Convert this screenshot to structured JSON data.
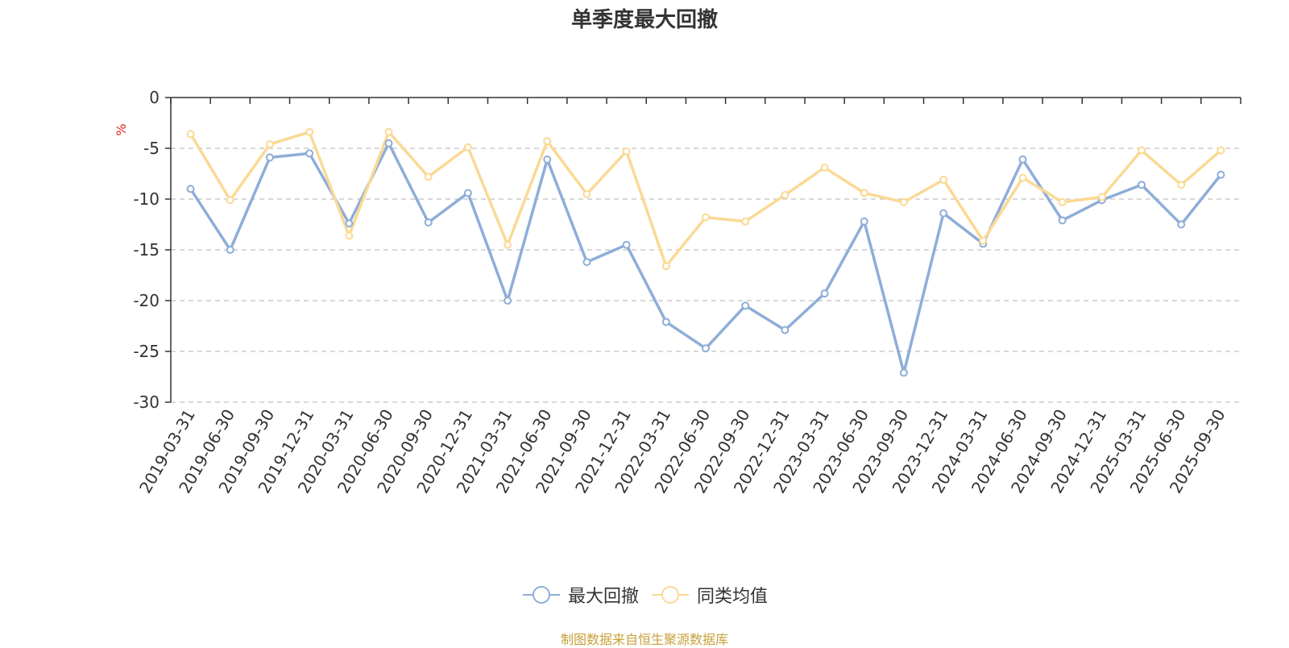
{
  "chart_data": {
    "type": "line",
    "title": "单季度最大回撤",
    "ylabel": "%",
    "xlabel": "",
    "ylim": [
      -30,
      0
    ],
    "yticks": [
      0,
      -5,
      -10,
      -15,
      -20,
      -25,
      -30
    ],
    "grid": true,
    "legend_position": "bottom",
    "categories": [
      "2019-03-31",
      "2019-06-30",
      "2019-09-30",
      "2019-12-31",
      "2020-03-31",
      "2020-06-30",
      "2020-09-30",
      "2020-12-31",
      "2021-03-31",
      "2021-06-30",
      "2021-09-30",
      "2021-12-31",
      "2022-03-31",
      "2022-06-30",
      "2022-09-30",
      "2022-12-31",
      "2023-03-31",
      "2023-06-30",
      "2023-09-30",
      "2023-12-31",
      "2024-03-31",
      "2024-06-30",
      "2024-09-30",
      "2024-12-31",
      "2025-03-31",
      "2025-06-30",
      "2025-09-30"
    ],
    "series": [
      {
        "name": "最大回撤",
        "color": "#8eadd8",
        "values": [
          -9.0,
          -15.0,
          -5.9,
          -5.5,
          -12.4,
          -4.5,
          -12.3,
          -9.4,
          -20.0,
          -6.1,
          -16.2,
          -14.5,
          -22.1,
          -24.7,
          -20.5,
          -22.9,
          -19.3,
          -12.2,
          -27.1,
          -11.4,
          -14.4,
          -6.1,
          -12.1,
          -10.1,
          -8.6,
          -12.5,
          -7.6
        ]
      },
      {
        "name": "同类均值",
        "color": "#fbd994",
        "values": [
          -3.6,
          -10.1,
          -4.6,
          -3.4,
          -13.6,
          -3.4,
          -7.8,
          -4.9,
          -14.5,
          -4.3,
          -9.5,
          -5.3,
          -16.6,
          -11.8,
          -12.2,
          -9.6,
          -6.9,
          -9.4,
          -10.3,
          -8.1,
          -14.1,
          -7.9,
          -10.3,
          -9.8,
          -5.2,
          -8.6,
          -5.2
        ]
      }
    ]
  },
  "footer": {
    "source_text": "制图数据来自恒生聚源数据库",
    "source_color": "#c8a13a"
  },
  "axis_label_color": "#e02020"
}
